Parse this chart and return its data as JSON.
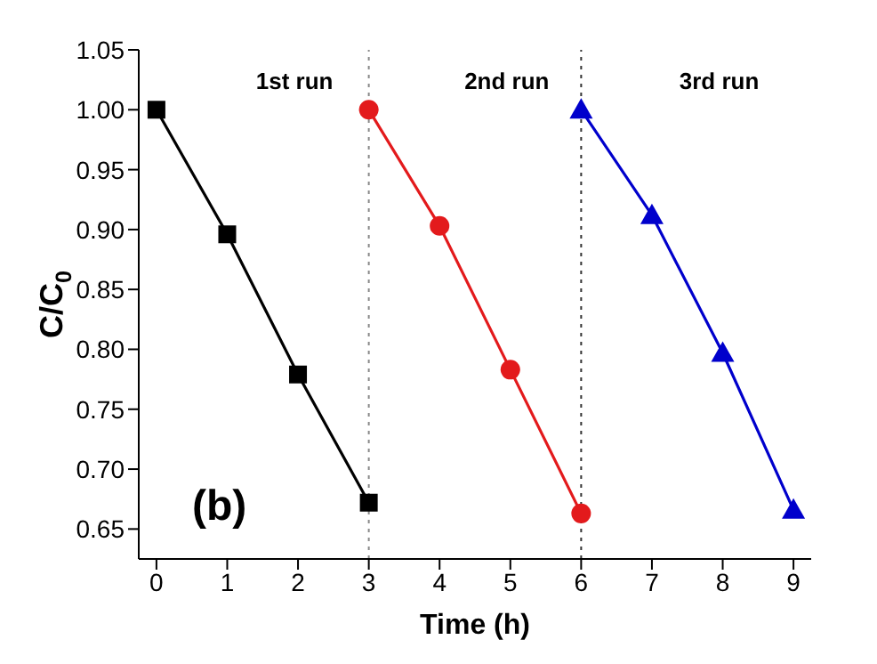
{
  "chart_data": {
    "type": "line",
    "xlabel": "Time (h)",
    "ylabel": "C/C$_{0}$",
    "xlim": [
      -0.25,
      9.25
    ],
    "xticks": [
      0,
      1,
      2,
      3,
      4,
      5,
      6,
      7,
      8,
      9
    ],
    "ylim": [
      0.625,
      1.05
    ],
    "yticks": [
      0.65,
      {
        "value": 0.7,
        "label": "0.70"
      },
      0.75,
      {
        "value": 0.8,
        "label": "0.80"
      },
      0.85,
      {
        "value": 0.9,
        "label": "0.90"
      },
      0.95,
      {
        "value": 1,
        "label": "1.00"
      },
      1.05
    ],
    "series": [
      {
        "color": "#000000",
        "marker": "square",
        "x": [
          0,
          1,
          2,
          3
        ],
        "values": [
          1.0,
          0.896,
          0.779,
          0.672
        ]
      },
      {
        "color": "#e31a1c",
        "marker": "circle",
        "x": [
          3,
          4,
          5,
          6
        ],
        "values": [
          1.0,
          0.903,
          0.783,
          0.663
        ]
      },
      {
        "color": "#0000cc",
        "marker": "triangle",
        "x": [
          6,
          7,
          8,
          9
        ],
        "values": [
          1.0,
          0.912,
          0.797,
          0.666
        ]
      }
    ],
    "ref_lines": [
      {
        "axis": "x",
        "value": 3,
        "color": "#888888",
        "line_style": "dotted"
      },
      {
        "axis": "x",
        "value": 6,
        "color": "#333333",
        "line_style": "dotted"
      }
    ],
    "grid": false,
    "annotations": [
      "1st run",
      "2nd run",
      "3rd run",
      "(b)"
    ]
  }
}
